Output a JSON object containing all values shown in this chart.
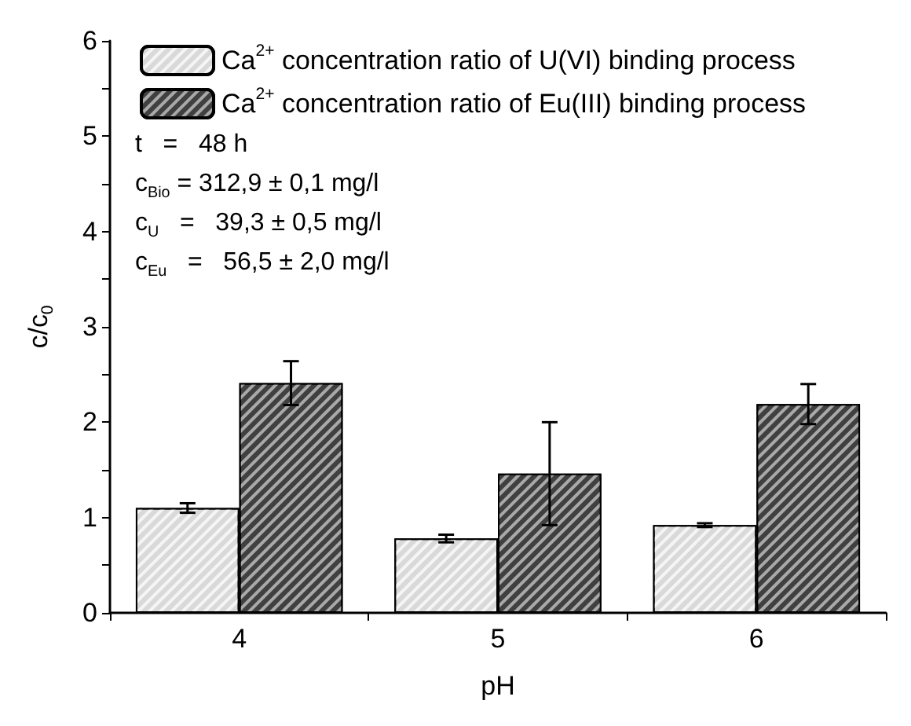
{
  "chart_data": {
    "type": "bar",
    "xlabel": "pH",
    "ylabel": "c/c$_{0}$",
    "categories": [
      "4",
      "5",
      "6"
    ],
    "series": [
      {
        "name": "Ca$^{2+}$ concentration ratio of U(VI) binding process",
        "color": "#d9d9d9",
        "values": [
          1.1,
          0.78,
          0.92
        ],
        "errors": [
          0.05,
          0.04,
          0.02
        ]
      },
      {
        "name": "Ca$^{2+}$ concentration ratio of Eu(III) binding process",
        "color": "#404040",
        "values": [
          2.41,
          1.46,
          2.19
        ],
        "errors": [
          0.23,
          0.54,
          0.21
        ]
      }
    ],
    "ylim": [
      0,
      6
    ],
    "yticks": [
      0,
      {
        "value": 0.5,
        "label": null
      },
      1,
      {
        "value": 1.5,
        "label": null
      },
      2,
      {
        "value": 2.5,
        "label": null
      },
      3,
      {
        "value": 3.5,
        "label": null
      },
      4,
      {
        "value": 4.5,
        "label": null
      },
      5,
      {
        "value": 5.5,
        "label": null
      },
      6
    ],
    "annotations": [
      "t   =   48 h",
      "c$_{Bio}$ = 312,9 ± 0,1 mg/l",
      "c$_{U}$   =   39,3 ± 0,5 mg/l",
      "c$_{Eu}$   =   56,5 ± 2,0 mg/l"
    ],
    "legend": "top left",
    "grid": false
  }
}
